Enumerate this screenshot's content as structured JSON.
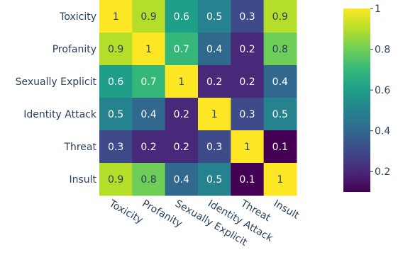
{
  "chart_data": {
    "type": "heatmap",
    "x_labels": [
      "Toxicity",
      "Profanity",
      "Sexually Explicit",
      "Identity Attack",
      "Threat",
      "Insult"
    ],
    "y_labels": [
      "Toxicity",
      "Profanity",
      "Sexually Explicit",
      "Identity Attack",
      "Threat",
      "Insult"
    ],
    "values": [
      [
        1,
        0.9,
        0.6,
        0.5,
        0.3,
        0.9
      ],
      [
        0.9,
        1,
        0.7,
        0.4,
        0.2,
        0.8
      ],
      [
        0.6,
        0.7,
        1,
        0.2,
        0.2,
        0.4
      ],
      [
        0.5,
        0.4,
        0.2,
        1,
        0.3,
        0.5
      ],
      [
        0.3,
        0.2,
        0.2,
        0.3,
        1,
        0.1
      ],
      [
        0.9,
        0.8,
        0.4,
        0.5,
        0.1,
        1
      ]
    ],
    "colorscale": "Viridis",
    "zmin": 0.1,
    "zmax": 1,
    "colorbar_ticks": [
      1,
      0.8,
      0.6,
      0.4,
      0.2
    ],
    "colorbar_tick_labels": [
      "1",
      "0.8",
      "0.6",
      "0.4",
      "0.2"
    ]
  }
}
